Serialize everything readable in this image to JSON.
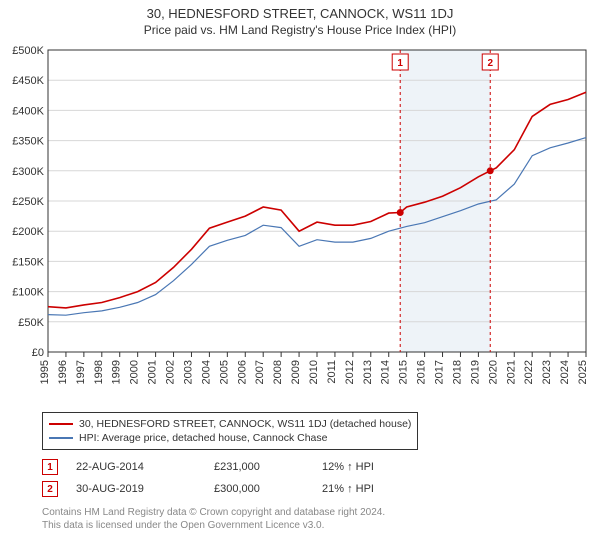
{
  "title": "30, HEDNESFORD STREET, CANNOCK, WS11 1DJ",
  "subtitle": "Price paid vs. HM Land Registry's House Price Index (HPI)",
  "chart": {
    "type": "line",
    "background_color": "#ffffff",
    "plot_border_color": "#333333",
    "grid_color": "#d7d7d7",
    "shaded_band_color": "#eef3f8",
    "title_fontsize": 13,
    "label_fontsize": 11,
    "ylim": [
      0,
      500000
    ],
    "ytick_step": 50000,
    "yticks": [
      "£0",
      "£50K",
      "£100K",
      "£150K",
      "£200K",
      "£250K",
      "£300K",
      "£350K",
      "£400K",
      "£450K",
      "£500K"
    ],
    "xlim_years": [
      1995,
      2025
    ],
    "xticks": [
      "1995",
      "1996",
      "1997",
      "1998",
      "1999",
      "2000",
      "2001",
      "2002",
      "2003",
      "2004",
      "2005",
      "2006",
      "2007",
      "2008",
      "2009",
      "2010",
      "2011",
      "2012",
      "2013",
      "2014",
      "2015",
      "2016",
      "2017",
      "2018",
      "2019",
      "2020",
      "2021",
      "2022",
      "2023",
      "2024",
      "2025"
    ],
    "series": [
      {
        "id": "property_hpi",
        "label": "30, HEDNESFORD STREET, CANNOCK, WS11 1DJ (detached house)",
        "color": "#cc0000",
        "line_width": 1.6,
        "points": [
          [
            1995,
            75000
          ],
          [
            1996,
            73000
          ],
          [
            1997,
            78000
          ],
          [
            1998,
            82000
          ],
          [
            1999,
            90000
          ],
          [
            2000,
            100000
          ],
          [
            2001,
            115000
          ],
          [
            2002,
            140000
          ],
          [
            2003,
            170000
          ],
          [
            2004,
            205000
          ],
          [
            2005,
            215000
          ],
          [
            2006,
            225000
          ],
          [
            2007,
            240000
          ],
          [
            2008,
            235000
          ],
          [
            2009,
            200000
          ],
          [
            2010,
            215000
          ],
          [
            2011,
            210000
          ],
          [
            2012,
            210000
          ],
          [
            2013,
            216000
          ],
          [
            2014,
            230000
          ],
          [
            2014.64,
            231000
          ],
          [
            2015,
            240000
          ],
          [
            2016,
            248000
          ],
          [
            2017,
            258000
          ],
          [
            2018,
            272000
          ],
          [
            2019,
            290000
          ],
          [
            2019.66,
            300000
          ],
          [
            2020,
            305000
          ],
          [
            2021,
            335000
          ],
          [
            2022,
            390000
          ],
          [
            2023,
            410000
          ],
          [
            2024,
            418000
          ],
          [
            2025,
            430000
          ]
        ]
      },
      {
        "id": "area_hpi",
        "label": "HPI: Average price, detached house, Cannock Chase",
        "color": "#4a77b4",
        "line_width": 1.2,
        "points": [
          [
            1995,
            62000
          ],
          [
            1996,
            61000
          ],
          [
            1997,
            65000
          ],
          [
            1998,
            68000
          ],
          [
            1999,
            74000
          ],
          [
            2000,
            82000
          ],
          [
            2001,
            95000
          ],
          [
            2002,
            118000
          ],
          [
            2003,
            145000
          ],
          [
            2004,
            175000
          ],
          [
            2005,
            185000
          ],
          [
            2006,
            193000
          ],
          [
            2007,
            210000
          ],
          [
            2008,
            206000
          ],
          [
            2009,
            175000
          ],
          [
            2010,
            186000
          ],
          [
            2011,
            182000
          ],
          [
            2012,
            182000
          ],
          [
            2013,
            188000
          ],
          [
            2014,
            200000
          ],
          [
            2015,
            208000
          ],
          [
            2016,
            214000
          ],
          [
            2017,
            224000
          ],
          [
            2018,
            234000
          ],
          [
            2019,
            245000
          ],
          [
            2020,
            252000
          ],
          [
            2021,
            278000
          ],
          [
            2022,
            325000
          ],
          [
            2023,
            338000
          ],
          [
            2024,
            346000
          ],
          [
            2025,
            355000
          ]
        ]
      }
    ],
    "sale_markers": [
      {
        "n": "1",
        "year": 2014.64,
        "price": 231000,
        "color": "#cc0000"
      },
      {
        "n": "2",
        "year": 2019.66,
        "price": 300000,
        "color": "#cc0000"
      }
    ],
    "marker_line_dash": "3,3",
    "marker_box_size": 16,
    "shaded_band_year_start": 2014.64,
    "shaded_band_year_end": 2019.66
  },
  "legend": {
    "border_color": "#333333",
    "rows": [
      {
        "color": "#cc0000",
        "label": "30, HEDNESFORD STREET, CANNOCK, WS11 1DJ (detached house)"
      },
      {
        "color": "#4a77b4",
        "label": "HPI: Average price, detached house, Cannock Chase"
      }
    ]
  },
  "sales_table": {
    "rows": [
      {
        "n": "1",
        "color": "#cc0000",
        "date": "22-AUG-2014",
        "price": "£231,000",
        "pct": "12% ↑ HPI"
      },
      {
        "n": "2",
        "color": "#cc0000",
        "date": "30-AUG-2019",
        "price": "£300,000",
        "pct": "21% ↑ HPI"
      }
    ]
  },
  "footer_line_1": "Contains HM Land Registry data © Crown copyright and database right 2024.",
  "footer_line_2": "This data is licensed under the Open Government Licence v3.0."
}
